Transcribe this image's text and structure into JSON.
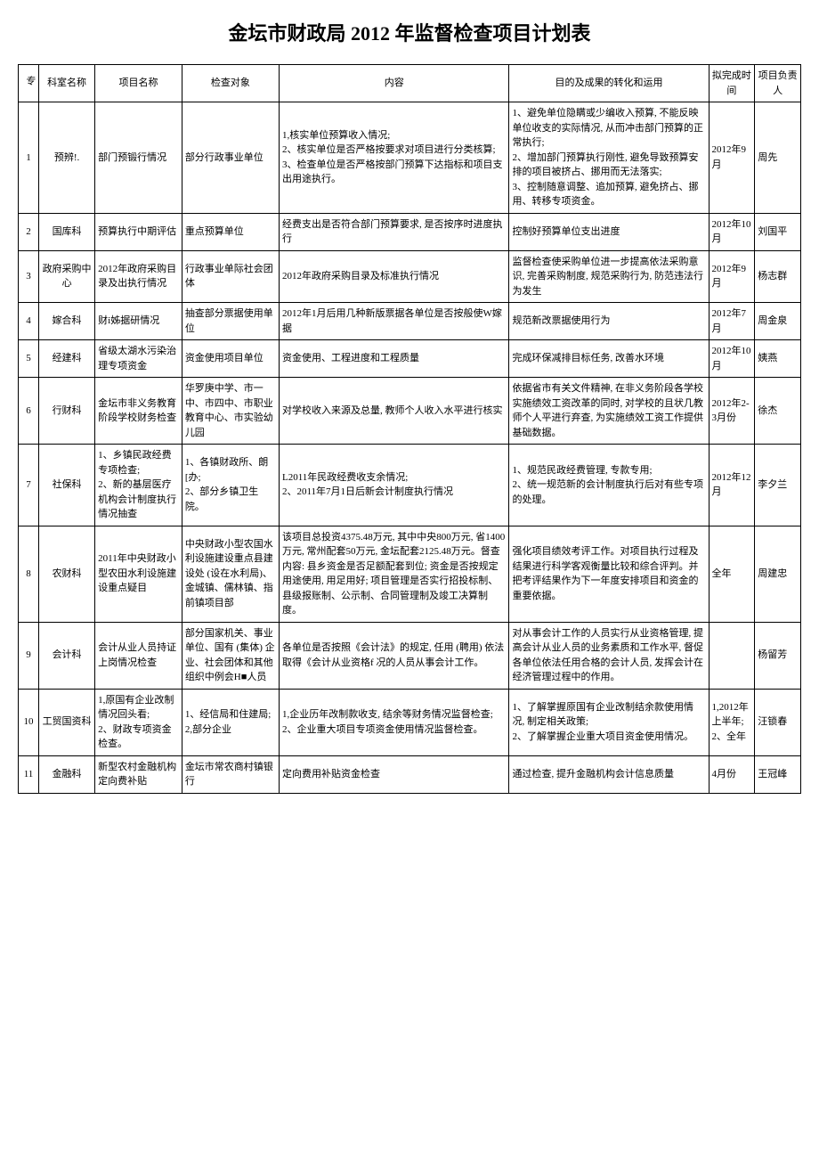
{
  "title": "金坛市财政局 2012 年监督检查项目计划表",
  "headers": {
    "h0": "专",
    "h1": "科室名称",
    "h2": "项目名称",
    "h3": "检查对象",
    "h4": "内容",
    "h5": "目的及成果的转化和运用",
    "h6": "拟完成时间",
    "h7": "项目负责人"
  },
  "rows": [
    {
      "no": "1",
      "dept": "预辨!.",
      "proj": "部门预锻行情况",
      "target": "部分行政事业单位",
      "content": "1,核实单位预算收入情况;\n2、核实单位是否严格按要求对项目进行分类核算;\n3、检查单位是否严格按部门预算下达指标和项目支出用途执行。",
      "purpose": "1、避免单位隐瞒或少编收入预算, 不能反映单位收支的实际情况, 从而冲击部门预算的正常执行;\n2、增加部门预算执行刚性, 避免导致预算安排的项目被挤占、挪用而无法落实;\n3、控制随意调整、追加预算, 避免挤占、挪用、转移专项资金。",
      "time": "2012年9月",
      "person": "周先"
    },
    {
      "no": "2",
      "dept": "国库科",
      "proj": "预算执行中期评估",
      "target": "重点预算单位",
      "content": "经费支出是否符合部门预算要求, 是否按序时进度执行",
      "purpose": "控制好预算单位支出进度",
      "time": "2012年10月",
      "person": "刘国平"
    },
    {
      "no": "3",
      "dept": "政府采购中心",
      "proj": "2012年政府采购目录及出执行情况",
      "target": "行政事业单际社会团体",
      "content": "2012年政府采购目录及标准执行情况",
      "purpose": "监督检查使采购单位进一步提高依法采购意识, 完善采购制度, 规范采购行为, 防范违法行为发生",
      "time": "2012年9月",
      "person": "杨志群"
    },
    {
      "no": "4",
      "dept": "嫁合科",
      "proj": "财i姊据研情况",
      "target": "抽查部分票据使用单位",
      "content": "2012年1月后用几种新版票据各单位是否按般使W嫁据",
      "purpose": "规范新改票据使用行为",
      "time": "2012年7月",
      "person": "周金泉"
    },
    {
      "no": "5",
      "dept": "经建科",
      "proj": "省级太湖水污染治理专项资金",
      "target": "资金使用项目单位",
      "content": "资金使用、工程进度和工程质量",
      "purpose": "完成环保减排目标任务, 改善水环境",
      "time": "2012年10月",
      "person": "姨燕"
    },
    {
      "no": "6",
      "dept": "行财科",
      "proj": "金坛市非义务教育阶段学校财务检查",
      "target": "华罗庚中学、市一中、市四中、市职业教育中心、市实验幼儿园",
      "content": "对学校收入来源及总量, 教师个人收入水平进行核实",
      "purpose": "依据省市有关文件精神, 在非义务阶段各学校实施绩效工资改革的同时, 对学校的且状几教师个人平进行弃查, 为实施绩效工资工作提供基础数据。",
      "time": "2012年2-3月份",
      "person": "徐杰"
    },
    {
      "no": "7",
      "dept": "社保科",
      "proj": "1、乡镇民政经费专项检查;\n2、新的基层医疗机构会计制度执行情况抽查",
      "target": "1、各镇财政所、朗[办;\n2、部分乡镇卫生院。",
      "content": "L2011年民政经费收支余情况;\n2、2011年7月1日后新会计制度执行情况",
      "purpose": "1、规范民政经费管理, 专款专用;\n2、统一规范新的会计制度执行后对有些专项的处理。",
      "time": "2012年12月",
      "person": "李夕兰"
    },
    {
      "no": "8",
      "dept": "农财科",
      "proj": "2011年中央财政小型农田水利设施建设重点疑目",
      "target": "中央财政小型农国水利设施建设重点县建设处 (设在水利局)、金城镇、儒林镇、指前镇项目部",
      "content": "该项目总投资4375.48万元, 其中中央800万元, 省1400万元, 常州配套50万元, 金坛配套2125.48万元。督查内容: 县乡资金是否足额配套到位; 资金是否按规定用途使用, 用足用好; 项目管理是否实行招投标制、县级报账制、公示制、合同管理制及竣工决算制度。",
      "purpose": "强化项目绩效考评工作。对项目执行过程及结果进行科学客观衡量比较和综合评判。并把考评结果作为下一年度安排项目和资金的重要依据。",
      "time": "全年",
      "person": "周建忠"
    },
    {
      "no": "9",
      "dept": "会计科",
      "proj": "会计从业人员持证上岗情况检查",
      "target": "部分国家机关、事业单位、国有 (集体) 企业、社会团体和其他组织中例会H■人员",
      "content": "各单位是否按照《会计法》的规定, 任用 (聘用) 依法取得《会计从业资格f 况的人员从事会计工作。",
      "purpose": "对从事会计工作的人员实行从业资格管理, 提高会计从业人员的业务素质和工作水平, 督促各单位依法任用合格的会计人员, 发挥会计在经济管理过程中的作用。",
      "time": "",
      "person": "杨留芳"
    },
    {
      "no": "10",
      "dept": "工贸国资科",
      "proj": "1,原国有企业改制情况回头看;\n2、财政专项资金检查。",
      "target": "1、经信局和住建局;\n2,部分企业",
      "content": "1,企业历年改制款收支, 结余等财务情况监督检查;\n2、企业重大项目专项资金使用情况监督检查。",
      "purpose": "1、了解掌握原国有企业改制结余款使用情况, 制定相关政策;\n2、了解掌握企业重大项目资金使用情况。",
      "time": "1,2012年上半年;\n2、全年",
      "person": "汪锁春"
    },
    {
      "no": "11",
      "dept": "金融科",
      "proj": "新型农村金融机构定向费补贴",
      "target": "金坛市常农商村镇银行",
      "content": "定向费用补贴资金检查",
      "purpose": "通过检查, 提升金融机构会计信息质量",
      "time": "4月份",
      "person": "王冠峰"
    }
  ]
}
